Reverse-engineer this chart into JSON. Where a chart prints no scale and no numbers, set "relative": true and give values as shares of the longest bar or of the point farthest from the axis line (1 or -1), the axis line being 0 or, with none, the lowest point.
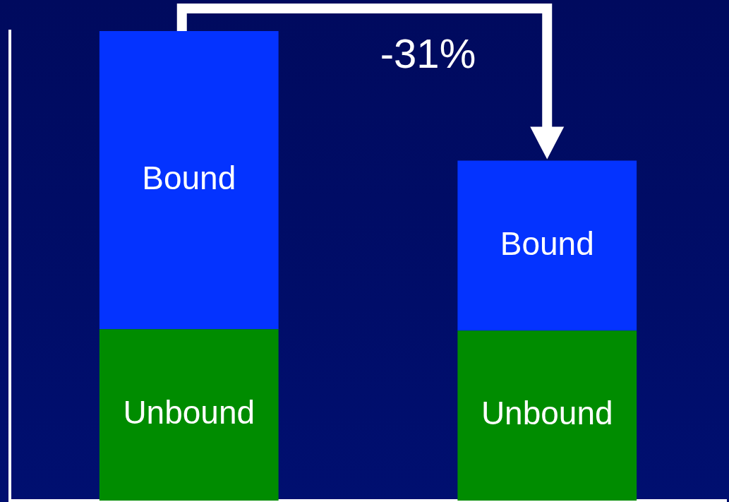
{
  "chart_data": {
    "type": "bar",
    "stacked": true,
    "relative": true,
    "categories": [
      null,
      null
    ],
    "series": [
      {
        "name": "Unbound",
        "color": "#008c00",
        "values": [
          0.365,
          0.362
        ]
      },
      {
        "name": "Bound",
        "color": "#0433ff",
        "values": [
          0.635,
          0.362
        ]
      }
    ],
    "annotations": [
      "-31%"
    ],
    "legend": false,
    "grid": false
  }
}
